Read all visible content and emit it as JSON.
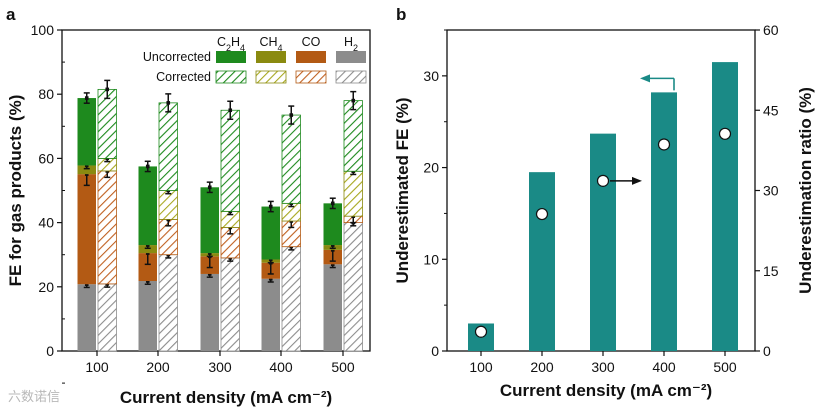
{
  "panel_labels": {
    "a": "a",
    "b": "b"
  },
  "legend": {
    "row_labels": [
      "Uncorrected",
      "Corrected"
    ],
    "columns": [
      {
        "label": "C2H4",
        "base": "C",
        "sub1": "2",
        "mid": "H",
        "sub2": "4"
      },
      {
        "label": "CH4",
        "base": "CH",
        "sub1": "4"
      },
      {
        "label": "CO",
        "base": "CO"
      },
      {
        "label": "H2",
        "base": "H",
        "sub1": "2"
      }
    ]
  },
  "colors": {
    "C2H4": "#1e8a1e",
    "CH4": "#8a8a10",
    "CO": "#b35a14",
    "H2": "#8c8c8c",
    "bar_b": "#1a8a86",
    "arrow": "#1a8a86"
  },
  "watermark": "六数诺信",
  "chart_data": [
    {
      "type": "bar",
      "stacked": true,
      "panel": "a",
      "xlabel": "Current density (mA cm⁻²)",
      "ylabel": "FE for gas products   (%)",
      "categories": [
        "100",
        "200",
        "300",
        "400",
        "500"
      ],
      "ylim": [
        0,
        100
      ],
      "yticks": [
        0,
        20,
        40,
        60,
        80,
        100
      ],
      "stack_order": [
        "H2",
        "CO",
        "CH4",
        "C2H4"
      ],
      "series": [
        {
          "name": "Uncorrected",
          "values": {
            "H2": [
              20.8,
              21.8,
              24.0,
              22.5,
              27.0
            ],
            "CO": [
              34.3,
              8.7,
              5.5,
              5.0,
              4.5
            ],
            "CH4": [
              2.7,
              2.5,
              1.0,
              1.0,
              1.5
            ],
            "C2H4": [
              21.0,
              24.5,
              20.5,
              16.5,
              13.0
            ]
          }
        },
        {
          "name": "Corrected",
          "values": {
            "H2": [
              20.9,
              30.0,
              29.0,
              32.5,
              40.0
            ],
            "CO": [
              35.2,
              11.0,
              9.5,
              8.0,
              2.0
            ],
            "CH4": [
              3.9,
              9.0,
              5.0,
              5.5,
              14.0
            ],
            "C2H4": [
              21.5,
              27.3,
              31.5,
              27.5,
              22.0
            ]
          }
        }
      ],
      "error_bars": {
        "Uncorrected": {
          "H2": 1.0,
          "CO": 3.5,
          "CH4": 1.0,
          "C2H4": 1.6
        },
        "Corrected": {
          "H2": 1.0,
          "CO": 2.0,
          "CH4": 1.0,
          "C2H4": 2.8
        }
      }
    },
    {
      "type": "bar",
      "panel": "b",
      "xlabel": "Current density (mA cm⁻²)",
      "ylabel": "Underestimated FE   (%)",
      "y2label": "Underestimation ratio   (%)",
      "categories": [
        "100",
        "200",
        "300",
        "400",
        "500"
      ],
      "ylim": [
        0,
        35
      ],
      "yticks": [
        0,
        10,
        20,
        30
      ],
      "y2lim": [
        0,
        60
      ],
      "y2ticks": [
        0,
        15,
        30,
        45,
        60
      ],
      "series": [
        {
          "values": [
            3.0,
            19.5,
            23.7,
            28.2,
            31.5
          ],
          "axis": "left",
          "kind": "bar"
        },
        {
          "values": [
            3.6,
            25.6,
            31.8,
            38.6,
            40.6
          ],
          "axis": "right",
          "kind": "scatter"
        }
      ]
    }
  ]
}
